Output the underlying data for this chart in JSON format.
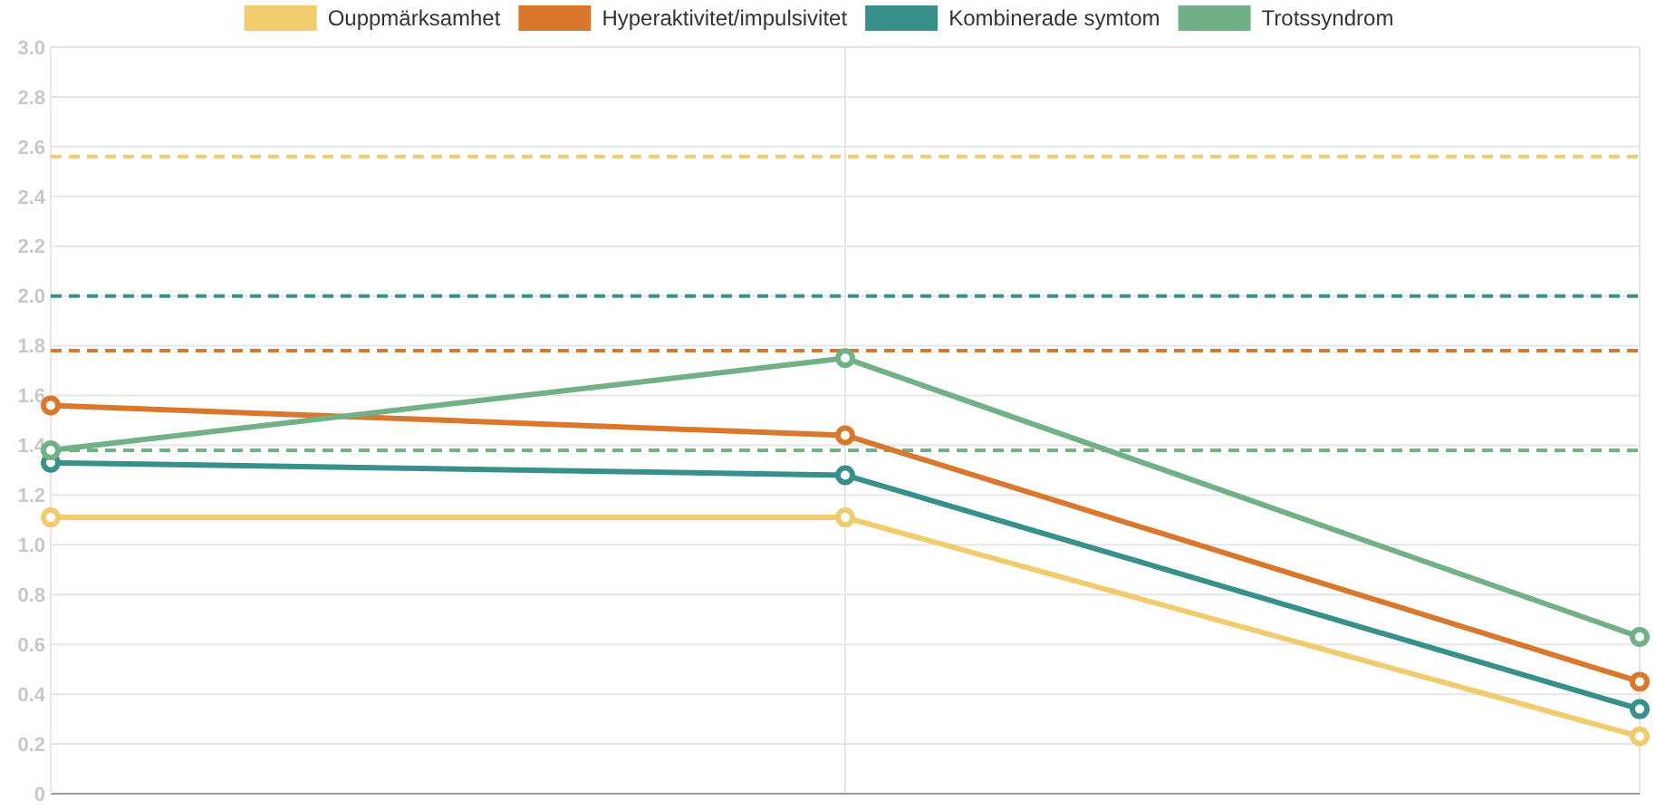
{
  "chart_data": {
    "type": "line",
    "categories": [
      null,
      null,
      null
    ],
    "series": [
      {
        "name": "Ouppmärksamhet",
        "color": "#f0cc6e",
        "values": [
          1.11,
          1.11,
          0.23
        ]
      },
      {
        "name": "Hyperaktivitet/impulsivitet",
        "color": "#d9782d",
        "values": [
          1.56,
          1.44,
          0.45
        ]
      },
      {
        "name": "Kombinerade symtom",
        "color": "#37918a",
        "values": [
          1.33,
          1.28,
          0.34
        ]
      },
      {
        "name": "Trotssyndrom",
        "color": "#72b088",
        "values": [
          1.38,
          1.75,
          0.63
        ]
      }
    ],
    "ref_lines": [
      {
        "axis": "y",
        "value": 2.56,
        "color": "#f0cc6e",
        "line_style": "dashed"
      },
      {
        "axis": "y",
        "value": 2.0,
        "color": "#37918a",
        "line_style": "dashed"
      },
      {
        "axis": "y",
        "value": 1.78,
        "color": "#d9782d",
        "line_style": "dashed"
      },
      {
        "axis": "y",
        "value": 1.38,
        "color": "#72b088",
        "line_style": "dashed"
      }
    ],
    "ylim": [
      0,
      3
    ],
    "yticks": [
      0,
      {
        "value": 0.2,
        "label": "0.2"
      },
      {
        "value": 0.4,
        "label": "0.4"
      },
      {
        "value": 0.6,
        "label": "0.6"
      },
      {
        "value": 0.8,
        "label": "0.8"
      },
      {
        "value": 1,
        "label": "1.0"
      },
      {
        "value": 1.2,
        "label": "1.2"
      },
      {
        "value": 1.4,
        "label": "1.4"
      },
      {
        "value": 1.6,
        "label": "1.6"
      },
      {
        "value": 1.8,
        "label": "1.8"
      },
      {
        "value": 2,
        "label": "2.0"
      },
      {
        "value": 2.2,
        "label": "2.2"
      },
      {
        "value": 2.4,
        "label": "2.4"
      },
      {
        "value": 2.6,
        "label": "2.6"
      },
      {
        "value": 2.8,
        "label": "2.8"
      },
      {
        "value": 3,
        "label": "3.0"
      }
    ],
    "grid": true,
    "legend": "top",
    "tick_labels": "y",
    "marker": "circle",
    "line_style": "solid"
  }
}
